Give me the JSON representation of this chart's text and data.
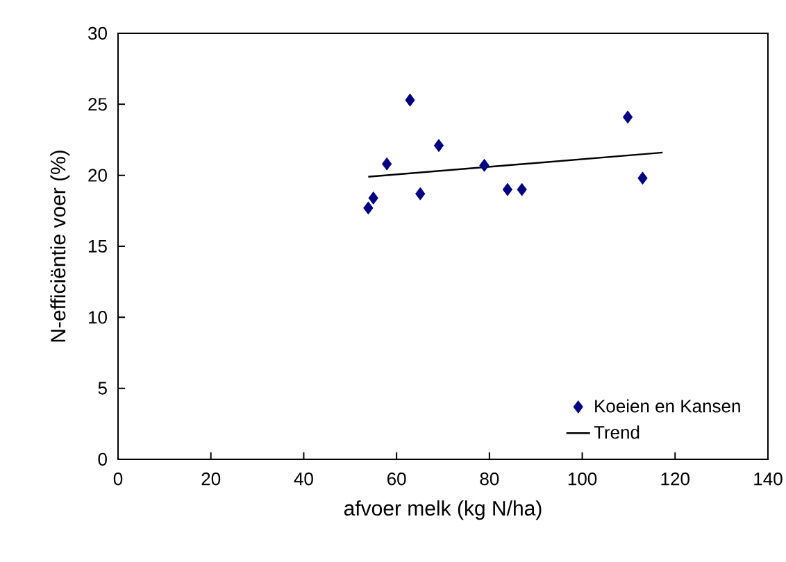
{
  "chart_data": {
    "type": "scatter",
    "xlabel": "afvoer melk (kg N/ha)",
    "ylabel": "N-efficiëntie  voer (%)",
    "xlim": [
      0,
      140
    ],
    "xticks": [
      0,
      20,
      40,
      60,
      80,
      100,
      120,
      140
    ],
    "ylim": [
      0,
      30
    ],
    "yticks": [
      0,
      5,
      10,
      15,
      20,
      25,
      30
    ],
    "grid": false,
    "legend": "bottom right",
    "marker": "diamond",
    "series": [
      {
        "name": "Koeien en Kansen",
        "color": "#000080",
        "x": [
          53.9,
          55.0,
          57.9,
          62.9,
          65.1,
          69.1,
          78.9,
          83.9,
          87.0,
          109.8,
          113.0
        ],
        "values": [
          17.7,
          18.4,
          20.8,
          25.3,
          18.7,
          22.1,
          20.7,
          19.0,
          19.0,
          24.1,
          19.8
        ]
      },
      {
        "name": "Trend",
        "type": "line",
        "color": "#000000",
        "marker": "none",
        "line_style": "solid",
        "x": [
          53.9,
          117.3
        ],
        "values": [
          19.9,
          21.6
        ]
      }
    ]
  }
}
